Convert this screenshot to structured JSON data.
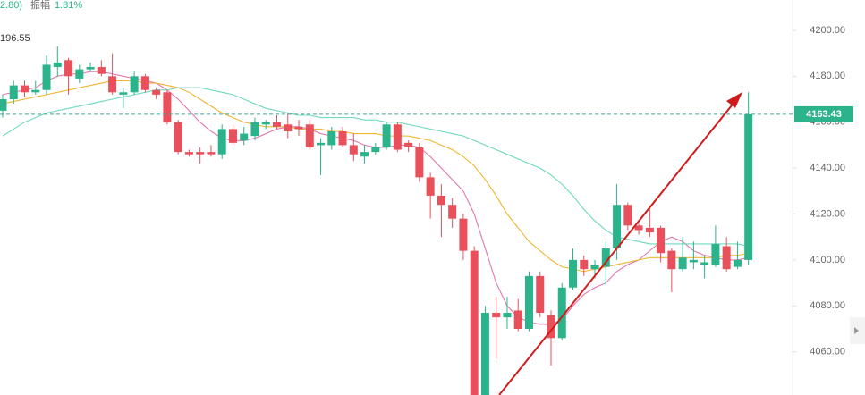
{
  "chart_data": {
    "type": "candlestick",
    "annotations": [
      "2.80)",
      "振幅",
      "1.81%",
      "196.55"
    ],
    "categories": [
      null,
      null,
      null,
      null,
      null,
      null,
      null,
      null,
      null,
      null,
      null,
      null,
      null,
      null,
      null,
      null,
      null,
      null,
      null,
      null,
      null,
      null,
      null,
      null,
      null,
      null,
      null,
      null,
      null,
      null,
      null,
      null,
      null,
      null,
      null,
      null,
      null,
      null,
      null,
      null,
      null,
      null,
      null,
      null,
      null,
      null,
      null,
      null,
      null,
      null,
      null,
      null,
      null,
      null,
      null,
      null,
      null,
      null,
      null,
      null,
      null,
      null,
      null,
      null,
      null,
      null,
      null,
      null,
      null
    ],
    "open": [
      4165,
      4170,
      4176,
      4173,
      4174,
      4184,
      4187,
      4179,
      4183,
      4184,
      4180,
      4172,
      4173,
      4180,
      4174,
      4173,
      4160,
      4147,
      4147,
      4147,
      4146,
      4157,
      4152,
      4154,
      4159,
      4160,
      4159,
      4158,
      4159,
      4150,
      4150,
      4156,
      4150,
      4145,
      4147,
      4149,
      4159,
      4151,
      4149,
      4136,
      4128,
      4124,
      4118,
      4104,
      4041,
      4077,
      4075,
      4078,
      4070,
      4093,
      4076,
      4066,
      4088,
      4100,
      4096,
      4097,
      4105,
      4124,
      4115,
      4114,
      4114,
      4104,
      4096,
      4099,
      4098,
      4098,
      4106,
      4097,
      4100
    ],
    "high": [
      4172,
      4178,
      4178,
      4178,
      4189,
      4193,
      4188,
      4185,
      4186,
      4187,
      4190,
      4175,
      4182,
      4181,
      4175,
      4174,
      4161,
      4148,
      4149,
      4150,
      4159,
      4159,
      4158,
      4162,
      4161,
      4163,
      4164,
      4161,
      4161,
      4153,
      4158,
      4158,
      4155,
      4150,
      4151,
      4160,
      4160,
      4152,
      4151,
      4138,
      4133,
      4127,
      4120,
      4106,
      4080,
      4084,
      4084,
      4083,
      4095,
      4095,
      4078,
      4090,
      4105,
      4102,
      4100,
      4108,
      4133,
      4125,
      4116,
      4123,
      4115,
      4105,
      4110,
      4108,
      4102,
      4115,
      4110,
      4108,
      4173
    ],
    "low": [
      4162,
      4168,
      4171,
      4172,
      4172,
      4180,
      4172,
      4177,
      4182,
      4180,
      4172,
      4166,
      4172,
      4173,
      4170,
      4159,
      4146,
      4145,
      4142,
      4145,
      4144,
      4150,
      4150,
      4152,
      4157,
      4157,
      4153,
      4154,
      4148,
      4137,
      4148,
      4149,
      4143,
      4142,
      4146,
      4148,
      4147,
      4147,
      4134,
      4118,
      4110,
      4114,
      4100,
      4040,
      4040,
      4057,
      4070,
      4069,
      4069,
      4075,
      4054,
      4065,
      4087,
      4093,
      4092,
      4089,
      4100,
      4113,
      4111,
      4110,
      4099,
      4086,
      4095,
      4096,
      4092,
      4097,
      4095,
      4096,
      4098
    ],
    "close": [
      4170,
      4176,
      4173,
      4174,
      4185,
      4186,
      4180,
      4183,
      4184,
      4181,
      4173,
      4173,
      4180,
      4174,
      4172,
      4160,
      4147,
      4146,
      4146,
      4146,
      4157,
      4151,
      4155,
      4160,
      4160,
      4158,
      4156,
      4157,
      4149,
      4151,
      4156,
      4150,
      4146,
      4147,
      4149,
      4159,
      4148,
      4149,
      4136,
      4128,
      4124,
      4118,
      4104,
      4041,
      4077,
      4075,
      4077,
      4070,
      4093,
      4077,
      4066,
      4088,
      4100,
      4096,
      4098,
      4105,
      4124,
      4115,
      4113,
      4112,
      4103,
      4096,
      4101,
      4100,
      4099,
      4107,
      4096,
      4100,
      4163.43
    ],
    "up_color": "#2bb38b",
    "down_color": "#e8505b",
    "overlays": [
      {
        "color": "#e277ad",
        "values": [
          4172,
          4173,
          4174,
          4175,
          4178,
          4180,
          4181,
          4181,
          4182,
          4182,
          4181,
          4180,
          4179,
          4178,
          4177,
          4174,
          4170,
          4165,
          4160,
          4156,
          4153,
          4152,
          4152,
          4153,
          4155,
          4157,
          4158,
          4158,
          4157,
          4155,
          4154,
          4153,
          4152,
          4150,
          4149,
          4149,
          4150,
          4150,
          4149,
          4145,
          4140,
          4135,
          4130,
          4120,
          4105,
          4090,
          4080,
          4075,
          4073,
          4072,
          4072,
          4074,
          4080,
          4085,
          4088,
          4090,
          4095,
          4098,
          4100,
          4104,
          4108,
          4110,
          4108,
          4104,
          4102,
          4101,
          4100,
          4100,
          4101
        ]
      },
      {
        "color": "#f2b531",
        "values": [
          4168,
          4169,
          4170,
          4171,
          4172,
          4173,
          4174,
          4175,
          4176,
          4177,
          4178,
          4178,
          4178,
          4177,
          4177,
          4176,
          4175,
          4173,
          4170,
          4167,
          4164,
          4162,
          4160,
          4159,
          4158,
          4158,
          4158,
          4157,
          4157,
          4157,
          4156,
          4156,
          4155,
          4155,
          4155,
          4154,
          4154,
          4154,
          4153,
          4152,
          4150,
          4148,
          4145,
          4141,
          4135,
          4128,
          4120,
          4114,
          4108,
          4104,
          4100,
          4097,
          4096,
          4095,
          4096,
          4097,
          4098,
          4099,
          4100,
          4101,
          4101,
          4101,
          4101,
          4101,
          4101,
          4101,
          4102,
          4102,
          4103
        ]
      },
      {
        "color": "#6fd8bd",
        "values": [
          4154,
          4157,
          4160,
          4162,
          4164,
          4165,
          4166,
          4167,
          4168,
          4169,
          4170,
          4171,
          4172,
          4173,
          4174,
          4174,
          4175,
          4175,
          4175,
          4174,
          4173,
          4172,
          4170,
          4168,
          4166,
          4165,
          4164,
          4163,
          4163,
          4162,
          4162,
          4162,
          4162,
          4161,
          4161,
          4160,
          4160,
          4159,
          4158,
          4157,
          4156,
          4155,
          4154,
          4152,
          4150,
          4148,
          4146,
          4144,
          4142,
          4140,
          4137,
          4133,
          4128,
          4122,
          4117,
          4113,
          4110,
          4109,
          4108,
          4107,
          4107,
          4107,
          4107,
          4107,
          4107,
          4107,
          4107,
          4107,
          4106
        ]
      }
    ],
    "ylim": [
      4041.2,
      4213.2
    ],
    "yticks": [
      {
        "value": 4060,
        "label": "4060.00"
      },
      {
        "value": 4080,
        "label": "4080.00"
      },
      {
        "value": 4100,
        "label": "4100.00"
      },
      {
        "value": 4120,
        "label": "4120.00"
      },
      {
        "value": 4140,
        "label": "4140.00"
      },
      {
        "value": 4160,
        "label": "4160.00"
      },
      {
        "value": 4180,
        "label": "4180.00"
      },
      {
        "value": 4200,
        "label": "4200.00"
      }
    ]
  }
}
